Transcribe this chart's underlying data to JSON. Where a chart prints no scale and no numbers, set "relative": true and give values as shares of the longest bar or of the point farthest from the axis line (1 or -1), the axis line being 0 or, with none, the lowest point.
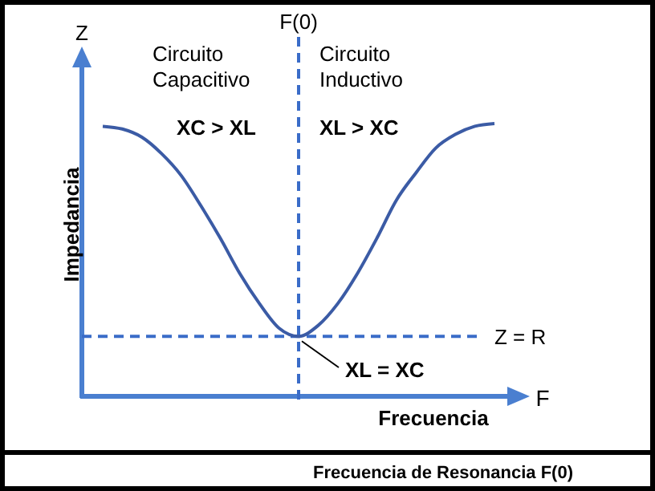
{
  "chart_data": {
    "type": "line",
    "relative": true,
    "xlabel": "Frecuencia",
    "ylabel": "Impedancia",
    "categories": [
      null,
      null,
      null,
      null,
      null,
      null,
      null,
      null,
      null,
      null,
      null,
      null,
      null,
      null,
      null,
      null,
      null,
      null,
      null,
      null,
      null
    ],
    "series": [
      {
        "color": "#3b5ba5",
        "values": [
          0.99,
          0.98,
          0.95,
          0.89,
          0.81,
          0.7,
          0.58,
          0.45,
          0.34,
          0.25,
          0.22,
          0.26,
          0.34,
          0.45,
          0.58,
          0.72,
          0.82,
          0.91,
          0.96,
          0.99,
          1
        ]
      }
    ],
    "marker": "none",
    "line_style": "solid",
    "ref_lines": [
      {
        "axis": "y",
        "value": 0.22,
        "label": "Z = R",
        "line_style": "dashed",
        "color": "#3a6cc8"
      },
      {
        "axis": "x",
        "label": "F(0)",
        "line_style": "dashed",
        "color": "#3a6cc8"
      }
    ],
    "annotations": [
      "Z",
      "F",
      "Circuito Capacitivo",
      "XC > XL",
      "Circuito Inductivo",
      "XL > XC",
      "XL = XC",
      "Frecuencia de Resonancia F(0)"
    ]
  }
}
